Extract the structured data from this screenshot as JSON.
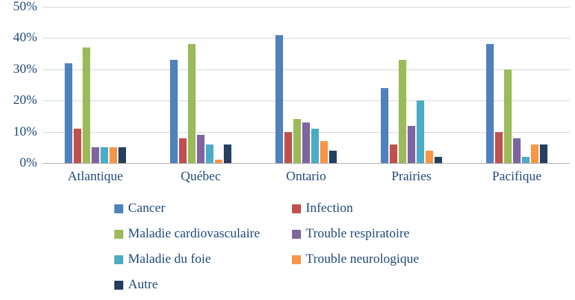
{
  "chart_data": {
    "type": "bar",
    "title": "",
    "xlabel": "",
    "ylabel": "",
    "categories": [
      "Atlantique",
      "Québec",
      "Ontario",
      "Prairies",
      "Pacifique"
    ],
    "series": [
      {
        "name": "Cancer",
        "color": "#4F81BD",
        "values": [
          32,
          33,
          41,
          24,
          38
        ]
      },
      {
        "name": "Infection",
        "color": "#C0504D",
        "values": [
          11,
          8,
          10,
          6,
          10
        ]
      },
      {
        "name": "Maladie cardiovasculaire",
        "color": "#9BBB59",
        "values": [
          37,
          38,
          14,
          33,
          30
        ]
      },
      {
        "name": "Trouble respiratoire",
        "color": "#8064A2",
        "values": [
          5,
          9,
          13,
          12,
          8
        ]
      },
      {
        "name": "Maladie du foie",
        "color": "#4BACC6",
        "values": [
          5,
          6,
          11,
          20,
          2
        ]
      },
      {
        "name": "Trouble neurologique",
        "color": "#F79646",
        "values": [
          5,
          1,
          7,
          4,
          6
        ]
      },
      {
        "name": "Autre",
        "color": "#243F60",
        "values": [
          5,
          6,
          4,
          2,
          6
        ]
      }
    ],
    "ylim": [
      0,
      50
    ],
    "ytick_step": 10,
    "ytick_labels": [
      "0%",
      "10%",
      "20%",
      "30%",
      "40%",
      "50%"
    ],
    "grid": true,
    "legend_position": "bottom",
    "axis_text_color": "#1F497D",
    "gridline_color": "#D6D6D6"
  }
}
